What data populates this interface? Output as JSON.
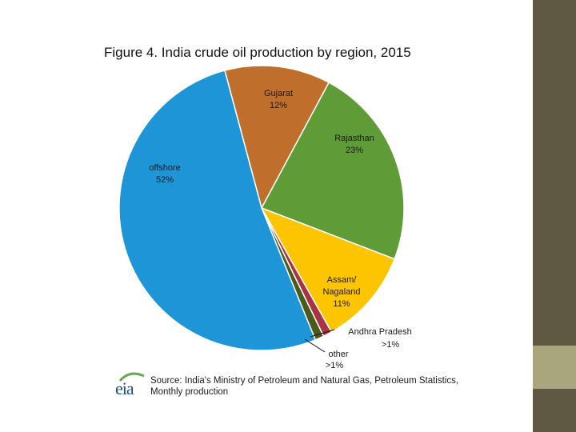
{
  "slide": {
    "background": "#ffffff",
    "accent_dark": "#5f5843",
    "accent_light": "#a9a57d"
  },
  "figure": {
    "title": "Figure 4. India crude oil production by region, 2015",
    "source_line1": "Source: India's Ministry of Petroleum and Natural Gas, Petroleum Statistics,",
    "source_line2": "Monthly production",
    "logo_text": "eia"
  },
  "chart_data": {
    "type": "pie",
    "title": "Figure 4. India crude oil production by region, 2015",
    "start_angle_deg": -15,
    "direction": "clockwise",
    "slices": [
      {
        "name": "Gujarat",
        "label_value": "12%",
        "value": 12,
        "color": "#bf6f2b"
      },
      {
        "name": "Rajasthan",
        "label_value": "23%",
        "value": 23,
        "color": "#5f9b36"
      },
      {
        "name": "Assam/",
        "name2": "Nagaland",
        "label_value": "11%",
        "value": 11,
        "color": "#fdc400"
      },
      {
        "name": "Andhra Pradesh",
        "label_value": ">1%",
        "value": 1,
        "color": "#a83344"
      },
      {
        "name": "other",
        "label_value": ">1%",
        "value": 1,
        "color": "#4a5a1a"
      },
      {
        "name": "offshore",
        "label_value": "52%",
        "value": 52,
        "color": "#1d95d6"
      }
    ]
  }
}
